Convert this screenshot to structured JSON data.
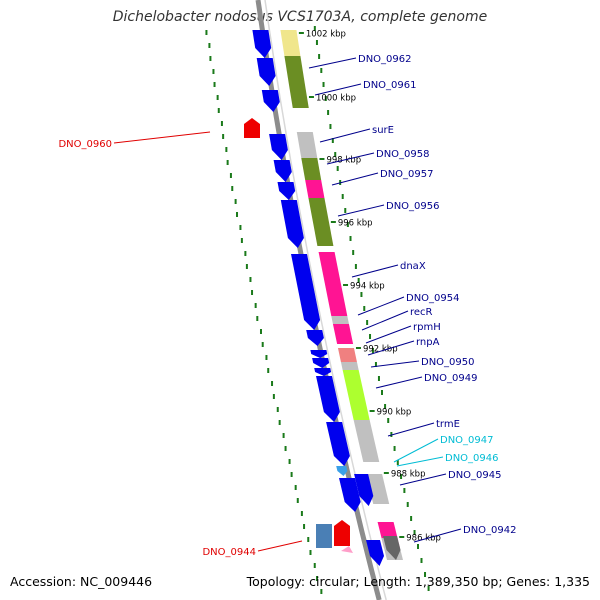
{
  "title": "Dichelobacter nodosus VCS1703A, complete genome",
  "footer": {
    "accession": "Accession: NC_009446",
    "summary": "Topology: circular; Length: 1,389,350 bp; Genes: 1,335"
  },
  "colors": {
    "backbone": "#8c8c8c",
    "cds_forward": "#0000ee",
    "cds_reverse": "#ee0000",
    "rna": "#3aa0e8",
    "gc_dots": "#1a7a1a",
    "label_blue": "#00008b",
    "label_cyan": "#00bcd4",
    "label_red": "#e00000",
    "cog_olive": "#6b8e23",
    "cog_magenta": "#ff1493",
    "cog_yellow": "#f0e68c",
    "cog_grey": "#c0c0c0",
    "cog_lime": "#adff2f",
    "cog_salmon": "#f08080"
  },
  "scale_labels": [
    "1002 kbp",
    "1000 kbp",
    "998 kbp",
    "996 kbp",
    "994 kbp",
    "992 kbp",
    "990 kbp",
    "988 kbp",
    "986 kbp"
  ],
  "gene_labels": [
    {
      "text": "DNO_0962",
      "color": "label_blue"
    },
    {
      "text": "DNO_0961",
      "color": "label_blue"
    },
    {
      "text": "DNO_0960",
      "color": "label_red"
    },
    {
      "text": "surE",
      "color": "label_blue"
    },
    {
      "text": "DNO_0958",
      "color": "label_blue"
    },
    {
      "text": "DNO_0957",
      "color": "label_blue"
    },
    {
      "text": "DNO_0956",
      "color": "label_blue"
    },
    {
      "text": "dnaX",
      "color": "label_blue"
    },
    {
      "text": "DNO_0954",
      "color": "label_blue"
    },
    {
      "text": "recR",
      "color": "label_blue"
    },
    {
      "text": "rpmH",
      "color": "label_blue"
    },
    {
      "text": "rnpA",
      "color": "label_blue"
    },
    {
      "text": "DNO_0950",
      "color": "label_blue"
    },
    {
      "text": "DNO_0949",
      "color": "label_blue"
    },
    {
      "text": "trmE",
      "color": "label_blue"
    },
    {
      "text": "DNO_0947",
      "color": "label_cyan"
    },
    {
      "text": "DNO_0946",
      "color": "label_cyan"
    },
    {
      "text": "DNO_0945",
      "color": "label_blue"
    },
    {
      "text": "DNO_0944",
      "color": "label_red"
    },
    {
      "text": "DNO_0942",
      "color": "label_blue"
    }
  ]
}
